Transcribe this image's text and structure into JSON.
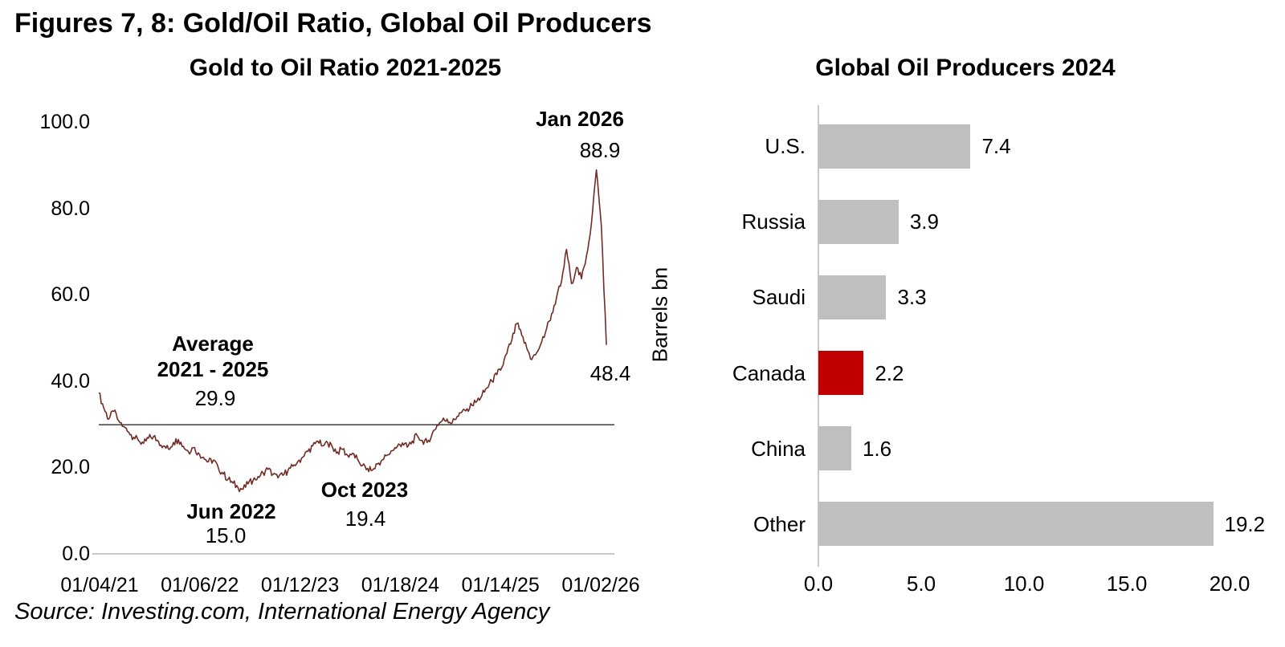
{
  "page": {
    "title": "Figures 7, 8: Gold/Oil Ratio, Global Oil Producers",
    "source": "Source: Investing.com, International Energy Agency"
  },
  "colors": {
    "line": "#722b24",
    "average_line": "#595959",
    "axis": "#c9c9c9",
    "bar": "#bfbfbf",
    "bar_highlight": "#c00000",
    "text": "#000000"
  },
  "chart_data": [
    {
      "type": "line",
      "title": "Gold to Oil Ratio 2021-2025",
      "series_name": "Gold to Oil Ratio",
      "x_tick_labels": [
        "01/04/21",
        "01/06/22",
        "01/12/23",
        "01/18/24",
        "01/14/25",
        "01/02/26"
      ],
      "y_ticks": [
        0,
        20,
        40,
        60,
        80,
        100
      ],
      "y_tick_labels": [
        "0.0",
        "20.0",
        "40.0",
        "60.0",
        "80.0",
        "100.0"
      ],
      "ylim": [
        0,
        100
      ],
      "grid": false,
      "average_value": 29.9,
      "values": [
        37.3,
        33.8,
        31.2,
        33.0,
        30.8,
        29.5,
        28.2,
        27.0,
        26.2,
        25.6,
        26.8,
        27.2,
        26.0,
        25.0,
        24.3,
        25.8,
        26.5,
        24.9,
        23.7,
        24.6,
        23.4,
        22.4,
        21.3,
        21.7,
        20.0,
        18.5,
        17.3,
        16.4,
        15.3,
        15.0,
        16.2,
        17.0,
        17.9,
        18.8,
        19.6,
        18.4,
        17.6,
        18.2,
        19.3,
        20.3,
        21.4,
        22.4,
        23.7,
        25.0,
        26.1,
        25.0,
        25.7,
        24.6,
        23.6,
        24.2,
        22.8,
        23.3,
        21.9,
        20.5,
        19.8,
        19.4,
        20.8,
        21.8,
        22.9,
        23.9,
        24.9,
        25.7,
        24.7,
        26.1,
        27.4,
        26.3,
        25.8,
        27.8,
        29.9,
        30.8,
        31.2,
        30.3,
        31.8,
        32.9,
        33.6,
        34.4,
        35.4,
        36.7,
        38.4,
        40.0,
        41.5,
        43.2,
        46.4,
        49.5,
        53.3,
        50.6,
        47.6,
        45.0,
        46.6,
        49.1,
        52.2,
        55.6,
        59.4,
        63.1,
        70.5,
        62.6,
        66.3,
        63.7,
        69.0,
        76.5,
        88.9,
        75.8,
        48.4
      ],
      "annotations": {
        "peak": {
          "label": "Jan 2026",
          "value": "88.9"
        },
        "average": {
          "line1": "Average",
          "line2": "2021 - 2025",
          "value": "29.9"
        },
        "jun2022": {
          "label": "Jun 2022",
          "value": "15.0"
        },
        "oct2023": {
          "label": "Oct 2023",
          "value": "19.4"
        },
        "latest": {
          "value": "48.4"
        }
      }
    },
    {
      "type": "bar",
      "title": "Global Oil Producers 2024",
      "orientation": "horizontal",
      "categories": [
        "U.S.",
        "Russia",
        "Saudi",
        "Canada",
        "China",
        "Other"
      ],
      "values": [
        7.4,
        3.9,
        3.3,
        2.2,
        1.6,
        19.2
      ],
      "value_labels": [
        "7.4",
        "3.9",
        "3.3",
        "2.2",
        "1.6",
        "19.2"
      ],
      "highlight_index": 3,
      "ylabel": "Barrels bn",
      "x_ticks": [
        0,
        5,
        10,
        15,
        20
      ],
      "x_tick_labels": [
        "0.0",
        "5.0",
        "10.0",
        "15.0",
        "20.0"
      ],
      "xlim": [
        0,
        20
      ],
      "grid": false,
      "legend": false
    }
  ]
}
